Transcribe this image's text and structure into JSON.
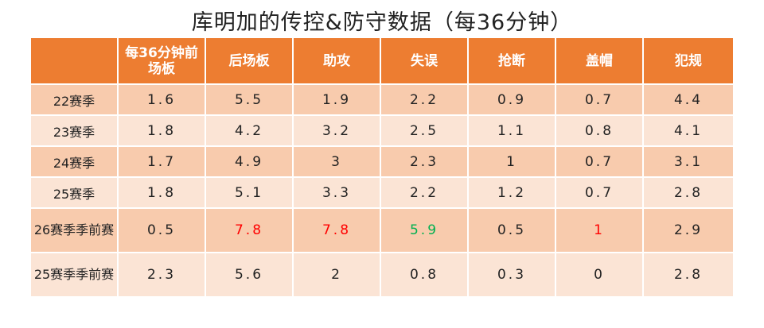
{
  "chart_data": {
    "type": "table",
    "title": "库明加的传控&防守数据（每36分钟）",
    "columns": [
      "",
      "每36分钟前场板",
      "后场板",
      "助攻",
      "失误",
      "抢断",
      "盖帽",
      "犯规"
    ],
    "rows": [
      {
        "label": "22赛季",
        "values": [
          "1.6",
          "5.5",
          "1.9",
          "2.2",
          "0.9",
          "0.7",
          "4.4"
        ]
      },
      {
        "label": "23赛季",
        "values": [
          "1.8",
          "4.2",
          "3.2",
          "2.5",
          "1.1",
          "0.8",
          "4.1"
        ]
      },
      {
        "label": "24赛季",
        "values": [
          "1.7",
          "4.9",
          "3",
          "2.3",
          "1",
          "0.7",
          "3.1"
        ]
      },
      {
        "label": "25赛季",
        "values": [
          "1.8",
          "5.1",
          "3.3",
          "2.2",
          "1.2",
          "0.7",
          "2.8"
        ]
      },
      {
        "label": "26赛季季前赛",
        "values": [
          "0.5",
          "7.8",
          "7.8",
          "5.9",
          "0.5",
          "1",
          "2.9"
        ]
      },
      {
        "label": "25赛季季前赛",
        "values": [
          "2.3",
          "5.6",
          "2",
          "0.8",
          "0.3",
          "0",
          "2.8"
        ]
      }
    ],
    "highlight_colors": {
      "red": "#ff0000",
      "green": "#00b050"
    },
    "header_color": "#ed7d31"
  }
}
